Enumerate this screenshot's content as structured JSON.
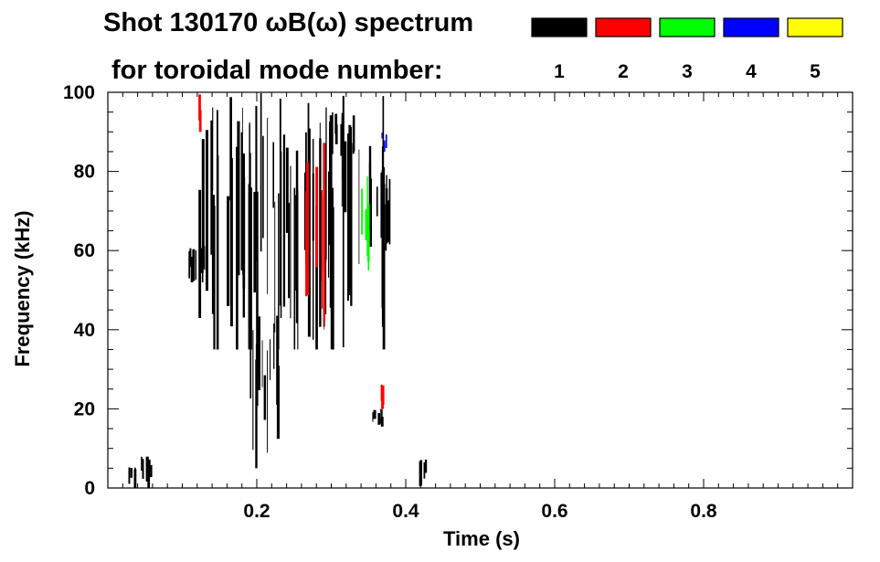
{
  "chart_data": {
    "type": "heatmap",
    "title": "Shot 130170 ωB(ω) spectrum",
    "subtitle": "for toroidal mode number:",
    "xlabel": "Time (s)",
    "ylabel": "Frequency (kHz)",
    "xlim": [
      0.0,
      1.0
    ],
    "ylim": [
      0,
      100
    ],
    "x_ticks": [
      0.2,
      0.4,
      0.6,
      0.8
    ],
    "x_tick_labels": [
      "0.2",
      "0.4",
      "0.6",
      "0.8"
    ],
    "y_ticks": [
      0,
      20,
      40,
      60,
      80,
      100
    ],
    "y_tick_labels": [
      "0",
      "20",
      "40",
      "60",
      "80",
      "100"
    ],
    "grid": false,
    "legend_position": "top-right",
    "legend": [
      {
        "label": "1",
        "color": "#000000"
      },
      {
        "label": "2",
        "color": "#ff0000"
      },
      {
        "label": "3",
        "color": "#00ff00"
      },
      {
        "label": "4",
        "color": "#0000ff"
      },
      {
        "label": "5",
        "color": "#ffff00"
      }
    ],
    "regions": [
      {
        "mode": 1,
        "t": [
          0.105,
          0.135
        ],
        "f": [
          52,
          62
        ]
      },
      {
        "mode": 1,
        "t": [
          0.115,
          0.375
        ],
        "f": [
          35,
          100
        ]
      },
      {
        "mode": 1,
        "t": [
          0.19,
          0.23
        ],
        "f": [
          5,
          45
        ]
      },
      {
        "mode": 1,
        "t": [
          0.295,
          0.33
        ],
        "f": [
          80,
          95
        ]
      },
      {
        "mode": 1,
        "t": [
          0.355,
          0.38
        ],
        "f": [
          60,
          80
        ]
      },
      {
        "mode": 1,
        "t": [
          0.355,
          0.375
        ],
        "f": [
          15,
          20
        ]
      },
      {
        "mode": 1,
        "t": [
          0.025,
          0.06
        ],
        "f": [
          0,
          8
        ]
      },
      {
        "mode": 1,
        "t": [
          0.415,
          0.43
        ],
        "f": [
          0,
          8
        ]
      },
      {
        "mode": 2,
        "t": [
          0.12,
          0.125
        ],
        "f": [
          90,
          100
        ]
      },
      {
        "mode": 2,
        "t": [
          0.26,
          0.29
        ],
        "f": [
          40,
          90
        ]
      },
      {
        "mode": 2,
        "t": [
          0.365,
          0.38
        ],
        "f": [
          20,
          28
        ]
      },
      {
        "mode": 3,
        "t": [
          0.335,
          0.35
        ],
        "f": [
          55,
          80
        ]
      },
      {
        "mode": 4,
        "t": [
          0.365,
          0.375
        ],
        "f": [
          85,
          90
        ]
      }
    ]
  }
}
